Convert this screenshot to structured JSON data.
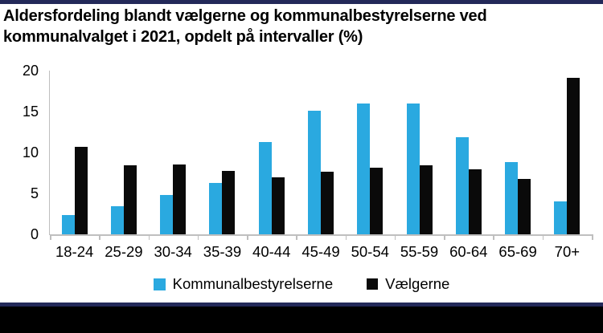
{
  "title": "Aldersfordeling blandt vælgerne og kommunalbestyrelserne ved kommunalvalget i 2021, opdelt på intervaller (%)",
  "colors": {
    "accent_navy": "#232959",
    "series_blue": "#2aa9e0",
    "series_black": "#0a0a0a",
    "axis_gray": "#bfbfbf",
    "footer_black": "#000000"
  },
  "chart_data": {
    "type": "bar",
    "categories": [
      "18-24",
      "25-29",
      "30-34",
      "35-39",
      "40-44",
      "45-49",
      "50-54",
      "55-59",
      "60-64",
      "65-69",
      "70+"
    ],
    "series": [
      {
        "name": "Kommunalbestyrelserne",
        "color_key": "series_blue",
        "values": [
          2.4,
          3.4,
          4.8,
          6.3,
          11.3,
          15.1,
          16.0,
          16.0,
          11.9,
          8.8,
          4.0
        ]
      },
      {
        "name": "Vælgerne",
        "color_key": "series_black",
        "values": [
          10.7,
          8.4,
          8.5,
          7.7,
          7.0,
          7.6,
          8.1,
          8.4,
          7.9,
          6.8,
          19.1
        ]
      }
    ],
    "title": "Aldersfordeling blandt vælgerne og kommunalbestyrelserne ved kommunalvalget i 2021, opdelt på intervaller (%)",
    "xlabel": "",
    "ylabel": "",
    "ylim": [
      0,
      20
    ],
    "yticks": [
      0,
      5,
      10,
      15,
      20
    ],
    "grid": false,
    "legend_position": "bottom"
  }
}
